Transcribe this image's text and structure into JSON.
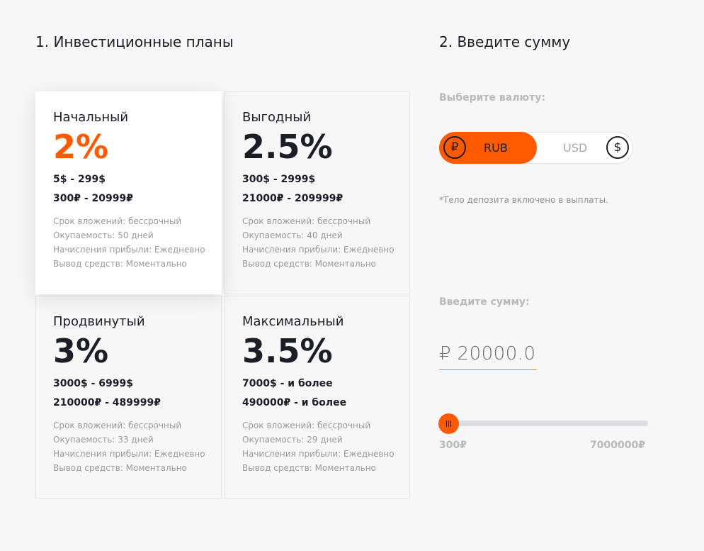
{
  "sections": {
    "plans_title": "1. Инвестиционные планы",
    "amount_title": "2. Введите сумму"
  },
  "plans": [
    {
      "name": "Начальный",
      "rate": "2%",
      "range_usd": "5$ - 299$",
      "range_rub": "300₽ - 20999₽",
      "term": "Срок вложений: бессрочный",
      "payback": "Окупаемость: 50 дней",
      "accrual": "Начисления прибыли: Ежедневно",
      "withdrawal": "Вывод средств: Моментально",
      "selected": true
    },
    {
      "name": "Выгодный",
      "rate": "2.5%",
      "range_usd": "300$ - 2999$",
      "range_rub": "21000₽ - 209999₽",
      "term": "Срок вложений: бессрочный",
      "payback": "Окупаемость: 40 дней",
      "accrual": "Начисления прибыли: Ежедневно",
      "withdrawal": "Вывод средств: Моментально",
      "selected": false
    },
    {
      "name": "Продвинутый",
      "rate": "3%",
      "range_usd": "3000$ - 6999$",
      "range_rub": "210000₽ - 489999₽",
      "term": "Срок вложений: бессрочный",
      "payback": "Окупаемость: 33 дней",
      "accrual": "Начисления прибыли: Ежедневно",
      "withdrawal": "Вывод средств: Моментально",
      "selected": false
    },
    {
      "name": "Максимальный",
      "rate": "3.5%",
      "range_usd": "7000$ - и более",
      "range_rub": "490000₽ - и более",
      "term": "Срок вложений: бессрочный",
      "payback": "Окупаемость: 29 дней",
      "accrual": "Начисления прибыли: Ежедневно",
      "withdrawal": "Вывод средств: Моментально",
      "selected": false
    }
  ],
  "currency": {
    "label": "Выберите валюту:",
    "options": [
      {
        "code": "RUB",
        "symbol": "₽",
        "icon": "ruble-coin-icon",
        "selected": true
      },
      {
        "code": "USD",
        "symbol": "$",
        "icon": "dollar-coin-icon",
        "selected": false
      }
    ],
    "note": "*Тело депозита включено в выплаты.",
    "accent_color": "#ff5a00"
  },
  "amount": {
    "label": "Введите сумму:",
    "currency_symbol": "₽",
    "value": "20000.0",
    "slider_min_label": "300₽",
    "slider_max_label": "7000000₽",
    "slider_fraction": 0.0
  }
}
